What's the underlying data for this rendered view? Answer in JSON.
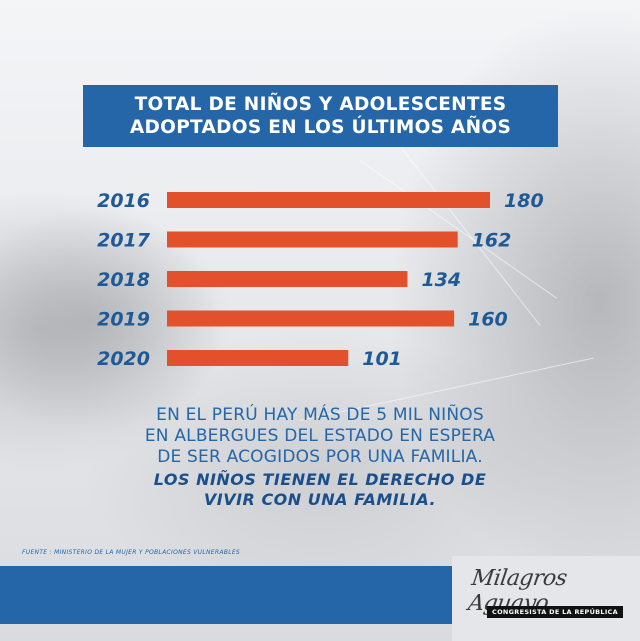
{
  "title": {
    "line1": "TOTAL DE NIÑOS Y ADOLESCENTES",
    "line2": "ADOPTADOS EN LOS ÚLTIMOS AÑOS"
  },
  "chart_data": {
    "type": "bar",
    "orientation": "horizontal",
    "categories": [
      "2016",
      "2017",
      "2018",
      "2019",
      "2020"
    ],
    "values": [
      180,
      162,
      134,
      160,
      101
    ],
    "xlim": [
      0,
      180
    ],
    "grid": false,
    "colors": {
      "bar": "#e2512b",
      "label": "#1f5a97"
    }
  },
  "message": {
    "line1": "EN EL PERÚ HAY MÁS DE 5 MIL NIÑOS",
    "line2": "EN ALBERGUES DEL ESTADO EN ESPERA",
    "line3": "DE SER ACOGIDOS POR UNA FAMILIA.",
    "emphasis_line1": "LOS NIÑOS TIENEN EL DERECHO DE",
    "emphasis_line2": "VIVIR CON UNA FAMILIA."
  },
  "source": "FUENTE : MINISTERIO DE LA MUJER Y POBLACIONES VULNERABLES",
  "footer": {
    "signature": "Milagros Aguayo",
    "role": "CONGRESISTA DE LA REPÚBLICA"
  },
  "colors": {
    "brand_blue": "#2466a8",
    "accent_orange": "#e2512b"
  }
}
